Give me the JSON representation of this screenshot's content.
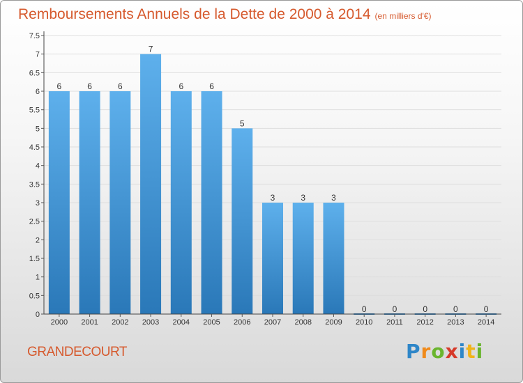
{
  "header": {
    "title": "Remboursements Annuels de la Dette de 2000 à 2014",
    "subtitle": "(en milliers d'€)"
  },
  "footer": {
    "commune": "GRANDECOURT",
    "logo": "Proxiti"
  },
  "colors": {
    "bar_top": "#5eb0ec",
    "bar_bottom": "#2a78b8",
    "accent": "#d65a2e"
  },
  "chart_data": {
    "type": "bar",
    "title": "Remboursements Annuels de la Dette de 2000 à 2014",
    "xlabel": "",
    "ylabel": "(en milliers d'€)",
    "categories": [
      "2000",
      "2001",
      "2002",
      "2003",
      "2004",
      "2005",
      "2006",
      "2007",
      "2008",
      "2009",
      "2010",
      "2011",
      "2012",
      "2013",
      "2014"
    ],
    "values": [
      6,
      6,
      6,
      7,
      6,
      6,
      5,
      3,
      3,
      3,
      0,
      0,
      0,
      0,
      0
    ],
    "data_labels": [
      "6",
      "6",
      "6",
      "7",
      "6",
      "6",
      "5",
      "3",
      "3",
      "3",
      "0",
      "0",
      "0",
      "0",
      "0"
    ],
    "ylim": [
      0,
      7.5
    ],
    "yticks": [
      0,
      0.5,
      1,
      1.5,
      2,
      2.5,
      3,
      3.5,
      4,
      4.5,
      5,
      5.5,
      6,
      6.5,
      7,
      7.5
    ],
    "ytick_labels": [
      "0",
      "0.5",
      "1",
      "1.5",
      "2",
      "2.5",
      "3",
      "3.5",
      "4",
      "4.5",
      "5",
      "5.5",
      "6",
      "6.5",
      "7",
      "7.5"
    ]
  }
}
